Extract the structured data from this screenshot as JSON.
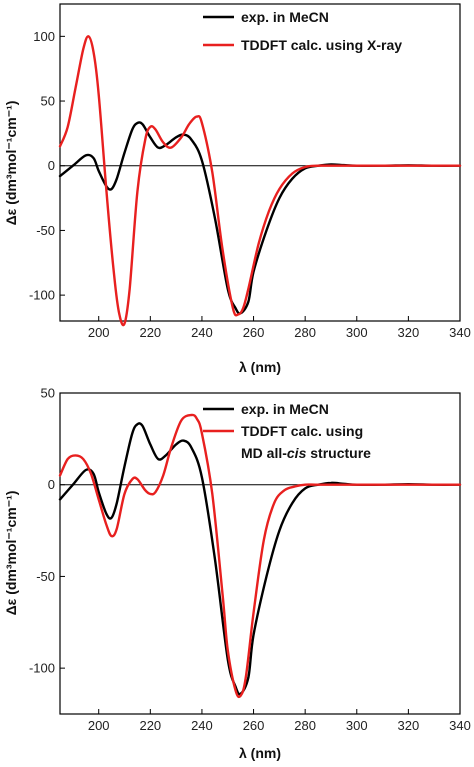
{
  "colors": {
    "exp": "#000000",
    "calc": "#e8201f",
    "axis": "#000000",
    "zero": "#000000"
  },
  "chart_data": [
    {
      "type": "line",
      "xlabel": "λ (nm)",
      "ylabel": "Δε (dm³mol⁻¹cm⁻¹)",
      "xlim": [
        185,
        340
      ],
      "ylim": [
        -120,
        125
      ],
      "xticks": [
        200,
        220,
        240,
        260,
        280,
        300,
        320,
        340
      ],
      "xtick_labels": [
        "200",
        "220",
        "240",
        "260",
        "280",
        "300",
        "320",
        "340"
      ],
      "yticks": [
        100,
        50,
        0,
        -50,
        -100
      ],
      "ytick_labels": [
        "100",
        "50",
        "0",
        "-50",
        "-100"
      ],
      "zero_line": true,
      "legend_position": "top-right",
      "series": [
        {
          "name": "exp. in MeCN",
          "color": "#000000",
          "x": [
            185,
            190,
            195,
            198,
            200,
            203,
            205,
            207,
            210,
            213,
            215,
            217,
            220,
            223,
            226,
            230,
            233,
            236,
            240,
            245,
            250,
            253,
            255,
            258,
            260,
            265,
            270,
            275,
            280,
            285,
            290,
            295,
            300,
            310,
            320,
            330,
            340
          ],
          "y": [
            -8,
            0,
            8,
            6,
            -4,
            -16,
            -18,
            -10,
            10,
            28,
            33,
            32,
            22,
            14,
            16,
            22,
            24,
            20,
            4,
            -40,
            -95,
            -110,
            -114,
            -105,
            -82,
            -50,
            -25,
            -10,
            -2,
            0,
            1,
            0.5,
            0,
            0,
            0.3,
            0,
            0
          ]
        },
        {
          "name": "TDDFT calc. using X-ray",
          "color": "#e8201f",
          "x": [
            185,
            188,
            191,
            194,
            196,
            198,
            200,
            203,
            206,
            208,
            210,
            212,
            215,
            218,
            220,
            222,
            225,
            228,
            232,
            235,
            238,
            240,
            244,
            248,
            252,
            254,
            256,
            258,
            262,
            266,
            270,
            275,
            280,
            285,
            290,
            300,
            320,
            340
          ],
          "y": [
            15,
            30,
            60,
            90,
            100,
            88,
            55,
            -20,
            -85,
            -115,
            -122,
            -95,
            -20,
            20,
            30,
            28,
            18,
            14,
            22,
            32,
            38,
            33,
            -5,
            -65,
            -110,
            -115,
            -110,
            -95,
            -60,
            -35,
            -18,
            -6,
            -1,
            0,
            0,
            0,
            0,
            0
          ]
        }
      ]
    },
    {
      "type": "line",
      "xlabel": "λ (nm)",
      "ylabel": "Δε (dm³mol⁻¹cm⁻¹)",
      "xlim": [
        185,
        340
      ],
      "ylim": [
        -125,
        50
      ],
      "xticks": [
        200,
        220,
        240,
        260,
        280,
        300,
        320,
        340
      ],
      "xtick_labels": [
        "200",
        "220",
        "240",
        "260",
        "280",
        "300",
        "320",
        "340"
      ],
      "yticks": [
        50,
        0,
        -50,
        -100
      ],
      "ytick_labels": [
        "50",
        "0",
        "-50",
        "-100"
      ],
      "zero_line": true,
      "legend_position": "top-right",
      "series": [
        {
          "name": "exp. in MeCN",
          "color": "#000000",
          "x": [
            185,
            190,
            195,
            198,
            200,
            203,
            205,
            207,
            210,
            213,
            215,
            217,
            220,
            223,
            226,
            230,
            233,
            236,
            240,
            245,
            250,
            253,
            255,
            258,
            260,
            265,
            270,
            275,
            280,
            285,
            290,
            295,
            300,
            310,
            320,
            330,
            340
          ],
          "y": [
            -8,
            0,
            8,
            6,
            -4,
            -16,
            -18,
            -10,
            10,
            28,
            33,
            32,
            22,
            14,
            16,
            22,
            24,
            20,
            4,
            -40,
            -95,
            -110,
            -114,
            -105,
            -82,
            -50,
            -25,
            -10,
            -2,
            0,
            1,
            0.5,
            0,
            0,
            0.3,
            0,
            0
          ]
        },
        {
          "name_lines": [
            "TDDFT calc. using",
            "MD all-",
            "cis",
            " structure"
          ],
          "color": "#e8201f",
          "x": [
            185,
            188,
            191,
            194,
            197,
            200,
            203,
            205,
            207,
            210,
            213,
            215,
            218,
            220,
            222,
            225,
            228,
            232,
            236,
            238,
            240,
            244,
            248,
            250,
            253,
            255,
            257,
            260,
            264,
            268,
            272,
            276,
            280,
            284,
            290,
            300,
            320,
            340
          ],
          "y": [
            5,
            14,
            16,
            14,
            6,
            -8,
            -22,
            -28,
            -24,
            -5,
            3,
            3,
            -3,
            -5,
            -4,
            5,
            20,
            35,
            38,
            36,
            28,
            -5,
            -60,
            -90,
            -112,
            -115,
            -105,
            -70,
            -30,
            -10,
            -3,
            -1,
            0,
            0,
            0,
            0,
            0,
            0
          ]
        }
      ]
    }
  ]
}
